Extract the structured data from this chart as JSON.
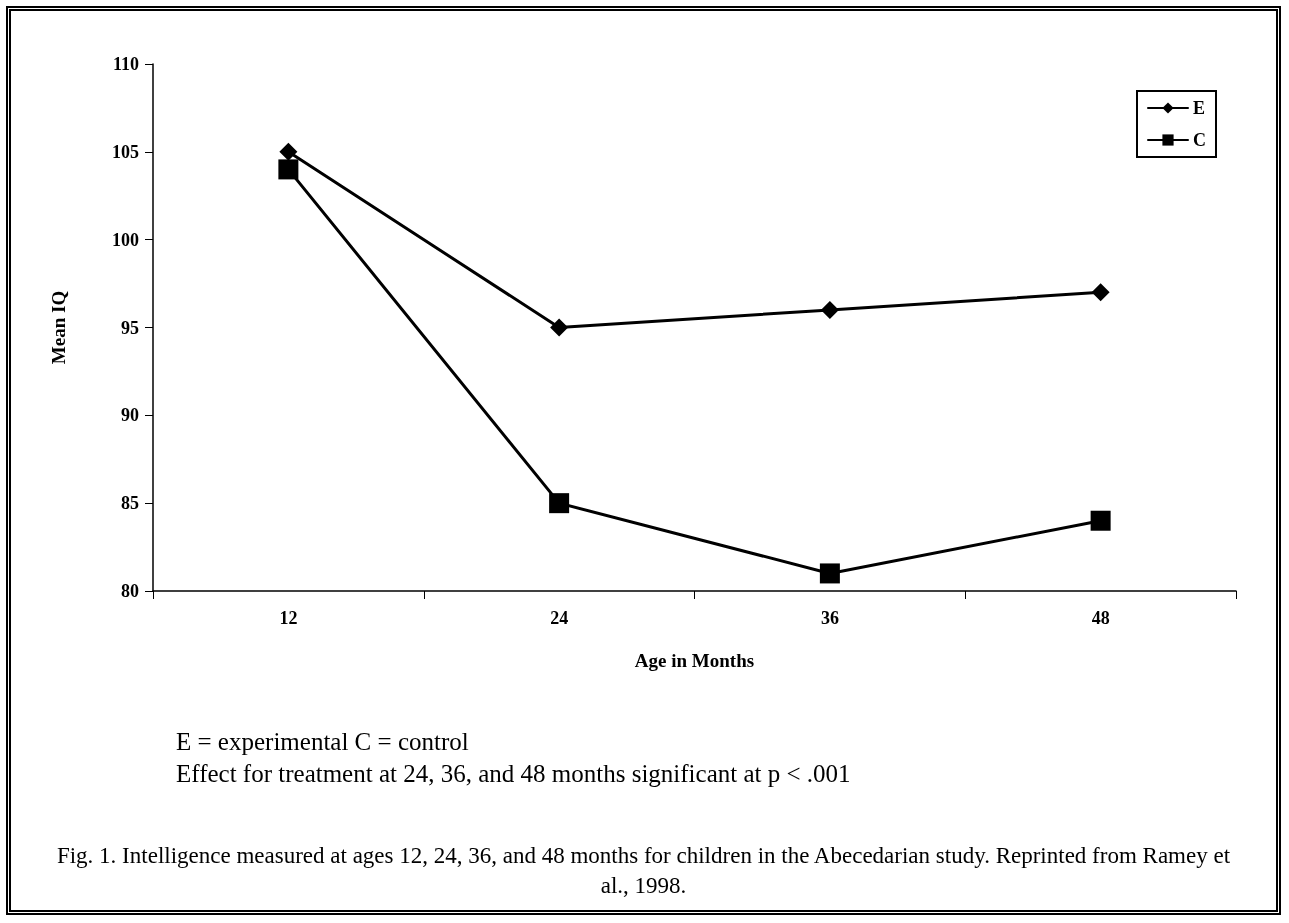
{
  "chart_data": {
    "type": "line",
    "xlabel": "Age in Months",
    "ylabel": "Mean IQ",
    "categories": [
      "12",
      "24",
      "36",
      "48"
    ],
    "series": [
      {
        "name": "E",
        "color": "#000000",
        "marker": "diamond",
        "values": [
          105,
          95,
          96,
          97
        ]
      },
      {
        "name": "C",
        "color": "#000000",
        "marker": "square",
        "values": [
          104,
          85,
          81,
          84
        ]
      }
    ],
    "ylim": [
      80,
      110
    ],
    "yticks": [
      80,
      85,
      90,
      95,
      100,
      105,
      110
    ],
    "grid": false,
    "legend": "top right",
    "line_style": "solid",
    "annotations": [
      "E = experimental C = control",
      "Effect for treatment at 24, 36, and 48 months significant at p < .001",
      "Fig. 1. Intelligence measured at ages 12, 24, 36, and 48 months for children in the Abecedarian study. Reprinted from Ramey et al., 1998."
    ]
  }
}
